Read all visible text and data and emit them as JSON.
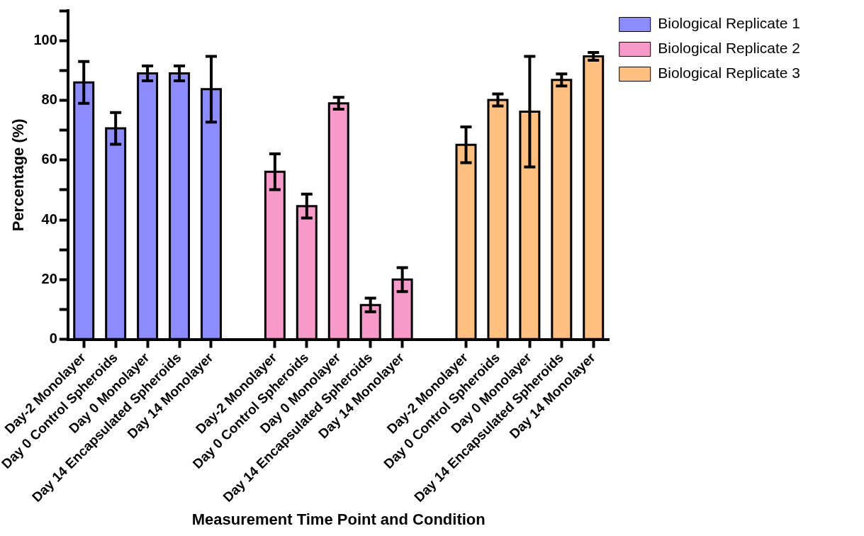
{
  "chart_data": {
    "type": "bar",
    "xlabel": "Measurement Time Point and Condition",
    "ylabel": "Percentage (%)",
    "categories": [
      "Day-2 Monolayer",
      "Day 0 Control Spheroids",
      "Day 0 Monolayer",
      "Day 14 Encapsulated Spheroids",
      "Day 14 Monolayer",
      null,
      "Day-2 Monolayer",
      "Day 0 Control Spheroids",
      "Day 0 Monolayer",
      "Day 14 Encapsulated Spheroids",
      "Day 14 Monolayer",
      null,
      "Day-2 Monolayer",
      "Day 0 Control Spheroids",
      "Day 0 Monolayer",
      "Day 14 Encapsulated Spheroids",
      "Day 14 Monolayer"
    ],
    "series": [
      {
        "name": "Biological Replicate 1",
        "color": "#8c8cff",
        "values": [
          86,
          70.6,
          89,
          89,
          83.7,
          null,
          null,
          null,
          null,
          null,
          null,
          null,
          null,
          null,
          null,
          null,
          null
        ],
        "errors": [
          7,
          5.3,
          2.5,
          2.5,
          11,
          null,
          null,
          null,
          null,
          null,
          null,
          null,
          null,
          null,
          null,
          null,
          null
        ]
      },
      {
        "name": "Biological Replicate 2",
        "color": "#f799c9",
        "values": [
          null,
          null,
          null,
          null,
          null,
          null,
          56.1,
          44.6,
          79,
          11.5,
          20,
          null,
          null,
          null,
          null,
          null,
          null
        ],
        "errors": [
          null,
          null,
          null,
          null,
          null,
          null,
          6,
          4,
          2,
          2.3,
          4,
          null,
          null,
          null,
          null,
          null,
          null
        ]
      },
      {
        "name": "Biological Replicate 3",
        "color": "#ffc07f",
        "values": [
          null,
          null,
          null,
          null,
          null,
          null,
          null,
          null,
          null,
          null,
          null,
          null,
          65.1,
          80.1,
          76.2,
          86.8,
          94.7
        ],
        "errors": [
          null,
          null,
          null,
          null,
          null,
          null,
          null,
          null,
          null,
          null,
          null,
          null,
          6,
          2,
          18.5,
          2,
          1.3
        ]
      }
    ],
    "ylim": [
      0,
      110
    ],
    "yticks": [
      0,
      {
        "value": 10,
        "label": null
      },
      20,
      {
        "value": 30,
        "label": null
      },
      40,
      {
        "value": 50,
        "label": null
      },
      60,
      {
        "value": 70,
        "label": null
      },
      80,
      {
        "value": 90,
        "label": null
      },
      100,
      {
        "value": 110,
        "label": null
      }
    ],
    "grid": false,
    "legend": "top right"
  }
}
